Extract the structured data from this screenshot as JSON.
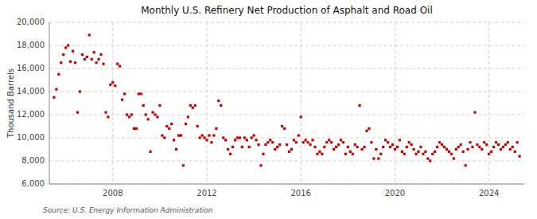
{
  "chart_data": {
    "type": "scatter",
    "title": "Monthly U.S. Refinery Net Production of Asphalt and Road Oil",
    "ylabel": "Thousand Barrels",
    "source": "Source: U.S. Energy Information Administration",
    "color": "#cc0000",
    "marker": "square",
    "grid": true,
    "xlim": [
      2005.3,
      2025.5
    ],
    "xticks": [
      2008,
      2012,
      2016,
      2020,
      2024
    ],
    "ylim": [
      6000,
      20000
    ],
    "yticks": [
      {
        "value": 6000,
        "label": "6,000"
      },
      {
        "value": 8000,
        "label": "8,000"
      },
      {
        "value": 10000,
        "label": "10,000"
      },
      {
        "value": 12000,
        "label": "12,000"
      },
      {
        "value": 14000,
        "label": "14,000"
      },
      {
        "value": 16000,
        "label": "16,000"
      },
      {
        "value": 18000,
        "label": "18,000"
      },
      {
        "value": 20000,
        "label": "20,000"
      }
    ],
    "x": [
      2005.5,
      2005.6,
      2005.7,
      2005.8,
      2005.9,
      2006.0,
      2006.1,
      2006.2,
      2006.3,
      2006.4,
      2006.5,
      2006.6,
      2006.7,
      2006.8,
      2006.9,
      2007.0,
      2007.1,
      2007.2,
      2007.3,
      2007.4,
      2007.5,
      2007.6,
      2007.7,
      2007.8,
      2007.9,
      2008.0,
      2008.1,
      2008.2,
      2008.3,
      2008.4,
      2008.5,
      2008.6,
      2008.7,
      2008.8,
      2008.9,
      2009.0,
      2009.1,
      2009.2,
      2009.3,
      2009.4,
      2009.5,
      2009.6,
      2009.7,
      2009.8,
      2009.9,
      2010.0,
      2010.1,
      2010.2,
      2010.3,
      2010.4,
      2010.5,
      2010.6,
      2010.7,
      2010.8,
      2010.9,
      2011.0,
      2011.1,
      2011.2,
      2011.3,
      2011.4,
      2011.5,
      2011.6,
      2011.7,
      2011.8,
      2011.9,
      2012.0,
      2012.1,
      2012.2,
      2012.3,
      2012.4,
      2012.5,
      2012.6,
      2012.7,
      2012.8,
      2012.9,
      2013.0,
      2013.1,
      2013.2,
      2013.3,
      2013.4,
      2013.5,
      2013.6,
      2013.7,
      2013.8,
      2013.9,
      2014.0,
      2014.1,
      2014.2,
      2014.3,
      2014.4,
      2014.5,
      2014.6,
      2014.7,
      2014.8,
      2014.9,
      2015.0,
      2015.1,
      2015.2,
      2015.3,
      2015.4,
      2015.5,
      2015.6,
      2015.7,
      2015.8,
      2015.9,
      2016.0,
      2016.1,
      2016.2,
      2016.3,
      2016.4,
      2016.5,
      2016.6,
      2016.7,
      2016.8,
      2016.9,
      2017.0,
      2017.1,
      2017.2,
      2017.3,
      2017.4,
      2017.5,
      2017.6,
      2017.7,
      2017.8,
      2017.9,
      2018.0,
      2018.1,
      2018.2,
      2018.3,
      2018.4,
      2018.5,
      2018.6,
      2018.7,
      2018.8,
      2018.9,
      2019.0,
      2019.1,
      2019.2,
      2019.3,
      2019.4,
      2019.5,
      2019.6,
      2019.7,
      2019.8,
      2019.9,
      2020.0,
      2020.1,
      2020.2,
      2020.3,
      2020.4,
      2020.5,
      2020.6,
      2020.7,
      2020.8,
      2020.9,
      2021.0,
      2021.1,
      2021.2,
      2021.3,
      2021.4,
      2021.5,
      2021.6,
      2021.7,
      2021.8,
      2021.9,
      2022.0,
      2022.1,
      2022.2,
      2022.3,
      2022.4,
      2022.5,
      2022.6,
      2022.7,
      2022.8,
      2022.9,
      2023.0,
      2023.1,
      2023.2,
      2023.3,
      2023.4,
      2023.5,
      2023.6,
      2023.7,
      2023.8,
      2023.9,
      2024.0,
      2024.1,
      2024.2,
      2024.3,
      2024.4,
      2024.5,
      2024.6,
      2024.7,
      2024.8,
      2024.9,
      2025.0,
      2025.1,
      2025.2,
      2025.3
    ],
    "values": [
      13500,
      14200,
      15500,
      16500,
      17200,
      17800,
      18000,
      16600,
      17500,
      16500,
      12200,
      14000,
      17200,
      16800,
      17000,
      18900,
      16800,
      17400,
      16500,
      16800,
      17200,
      16400,
      12200,
      11800,
      14600,
      14800,
      14500,
      16400,
      16200,
      13300,
      13800,
      12000,
      11800,
      12000,
      10800,
      10800,
      13800,
      13800,
      12800,
      12000,
      11600,
      8800,
      12200,
      12000,
      11800,
      12800,
      10200,
      10000,
      11000,
      10800,
      11200,
      9800,
      9000,
      10200,
      10200,
      7600,
      11200,
      11800,
      12800,
      12600,
      12800,
      11000,
      10000,
      10200,
      10000,
      9800,
      10200,
      9600,
      10200,
      10800,
      13200,
      12800,
      10000,
      9800,
      9000,
      8600,
      9200,
      9800,
      10000,
      10000,
      9200,
      10000,
      9800,
      9200,
      10000,
      10200,
      9800,
      9400,
      7600,
      8600,
      9400,
      9600,
      9800,
      9600,
      9000,
      9200,
      9400,
      11000,
      10800,
      9400,
      8800,
      9000,
      9800,
      9600,
      10200,
      11800,
      9600,
      9800,
      9600,
      9400,
      9800,
      9200,
      8600,
      8800,
      8600,
      9200,
      9600,
      9800,
      9600,
      9000,
      9200,
      9400,
      9800,
      9600,
      8600,
      9200,
      8800,
      8600,
      9400,
      9200,
      12800,
      9000,
      9200,
      10600,
      10800,
      9600,
      8200,
      9000,
      8200,
      8600,
      9200,
      9800,
      9600,
      9200,
      9400,
      9000,
      9200,
      9800,
      8800,
      8600,
      9200,
      9600,
      9400,
      9000,
      8600,
      8800,
      9200,
      8600,
      8800,
      8200,
      8000,
      8600,
      8800,
      9200,
      9600,
      9400,
      9200,
      9000,
      8800,
      8600,
      8200,
      9000,
      9200,
      9400,
      8800,
      7600,
      9000,
      9600,
      9200,
      12200,
      9400,
      9200,
      9000,
      9600,
      9400,
      8600,
      8800,
      9200,
      9600,
      9400,
      9000,
      9200,
      9400,
      9600,
      9000,
      9200,
      8800,
      9600,
      8400
    ]
  }
}
